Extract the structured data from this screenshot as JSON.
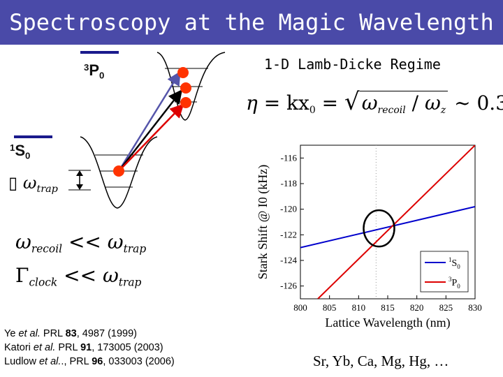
{
  "slide": {
    "title": "Spectroscopy at the Magic Wavelength",
    "regime_heading": "1-D Lamb-Dicke Regime"
  },
  "levels": {
    "excited": {
      "prefix": "3",
      "letter": "P",
      "suffix": "0"
    },
    "ground": {
      "prefix": "1",
      "letter": "S",
      "suffix": "0"
    }
  },
  "equations": {
    "lamb_dicke": {
      "eta": "η",
      "eq1": "= kx",
      "x_sub": "0",
      "eq2": "=",
      "radicand_a": "ω",
      "radicand_a_sub": "recoil",
      "slash": "/",
      "radicand_b": "ω",
      "radicand_b_sub": "z",
      "approx": "~ 0.3"
    },
    "trap_label": {
      "box": "▯",
      "omega": "ω",
      "sub": "trap"
    },
    "recoil": {
      "lhs": "ω",
      "lhs_sub": "recoil",
      "op": "<<",
      "rhs": "ω",
      "rhs_sub": "trap"
    },
    "clock": {
      "lhs": "Γ",
      "lhs_sub": "clock",
      "op": "<<",
      "rhs": "ω",
      "rhs_sub": "trap"
    }
  },
  "references": [
    {
      "authors": "Ye ",
      "etal": "et al.",
      "journal": " PRL ",
      "volume": "83",
      "rest": ", 4987 (1999)"
    },
    {
      "authors": "Katori ",
      "etal": "et al.",
      "journal": " PRL ",
      "volume": "91",
      "rest": ", 173005 (2003)"
    },
    {
      "authors": "Ludlow ",
      "etal": "et al.",
      "journal": "., PRL ",
      "volume": "96",
      "rest": ", 033003 (2006)"
    }
  ],
  "elements_list": "Sr, Yb, Ca, Mg, Hg, …",
  "colors": {
    "title_bg": "#4a4aa8",
    "s0_line": "#0000cc",
    "p0_line": "#dd0000",
    "dot": "#ff3300",
    "level_bar": "#1a1a8c"
  },
  "chart_data": {
    "type": "line",
    "xlabel": "Lattice Wavelength (nm)",
    "ylabel": "Stark Shift @ I0 (kHz)",
    "xlim": [
      800,
      830
    ],
    "ylim": [
      -127,
      -115
    ],
    "xticks": [
      800,
      805,
      810,
      815,
      820,
      825,
      830
    ],
    "yticks": [
      -116,
      -118,
      -120,
      -122,
      -124,
      -126
    ],
    "grid": false,
    "legend_placement": "bottom-right",
    "annotation": "circle at crossing near 813 nm",
    "series": [
      {
        "name": "1S0",
        "legend_prefix": "1",
        "legend_letter": "S",
        "legend_sub": "0",
        "color": "#0000cc",
        "x": [
          800,
          830
        ],
        "y": [
          -123.0,
          -119.8
        ]
      },
      {
        "name": "3P0",
        "legend_prefix": "3",
        "legend_letter": "P",
        "legend_sub": "0",
        "color": "#dd0000",
        "x": [
          803.0,
          830
        ],
        "y": [
          -127.0,
          -115.0
        ]
      }
    ]
  }
}
